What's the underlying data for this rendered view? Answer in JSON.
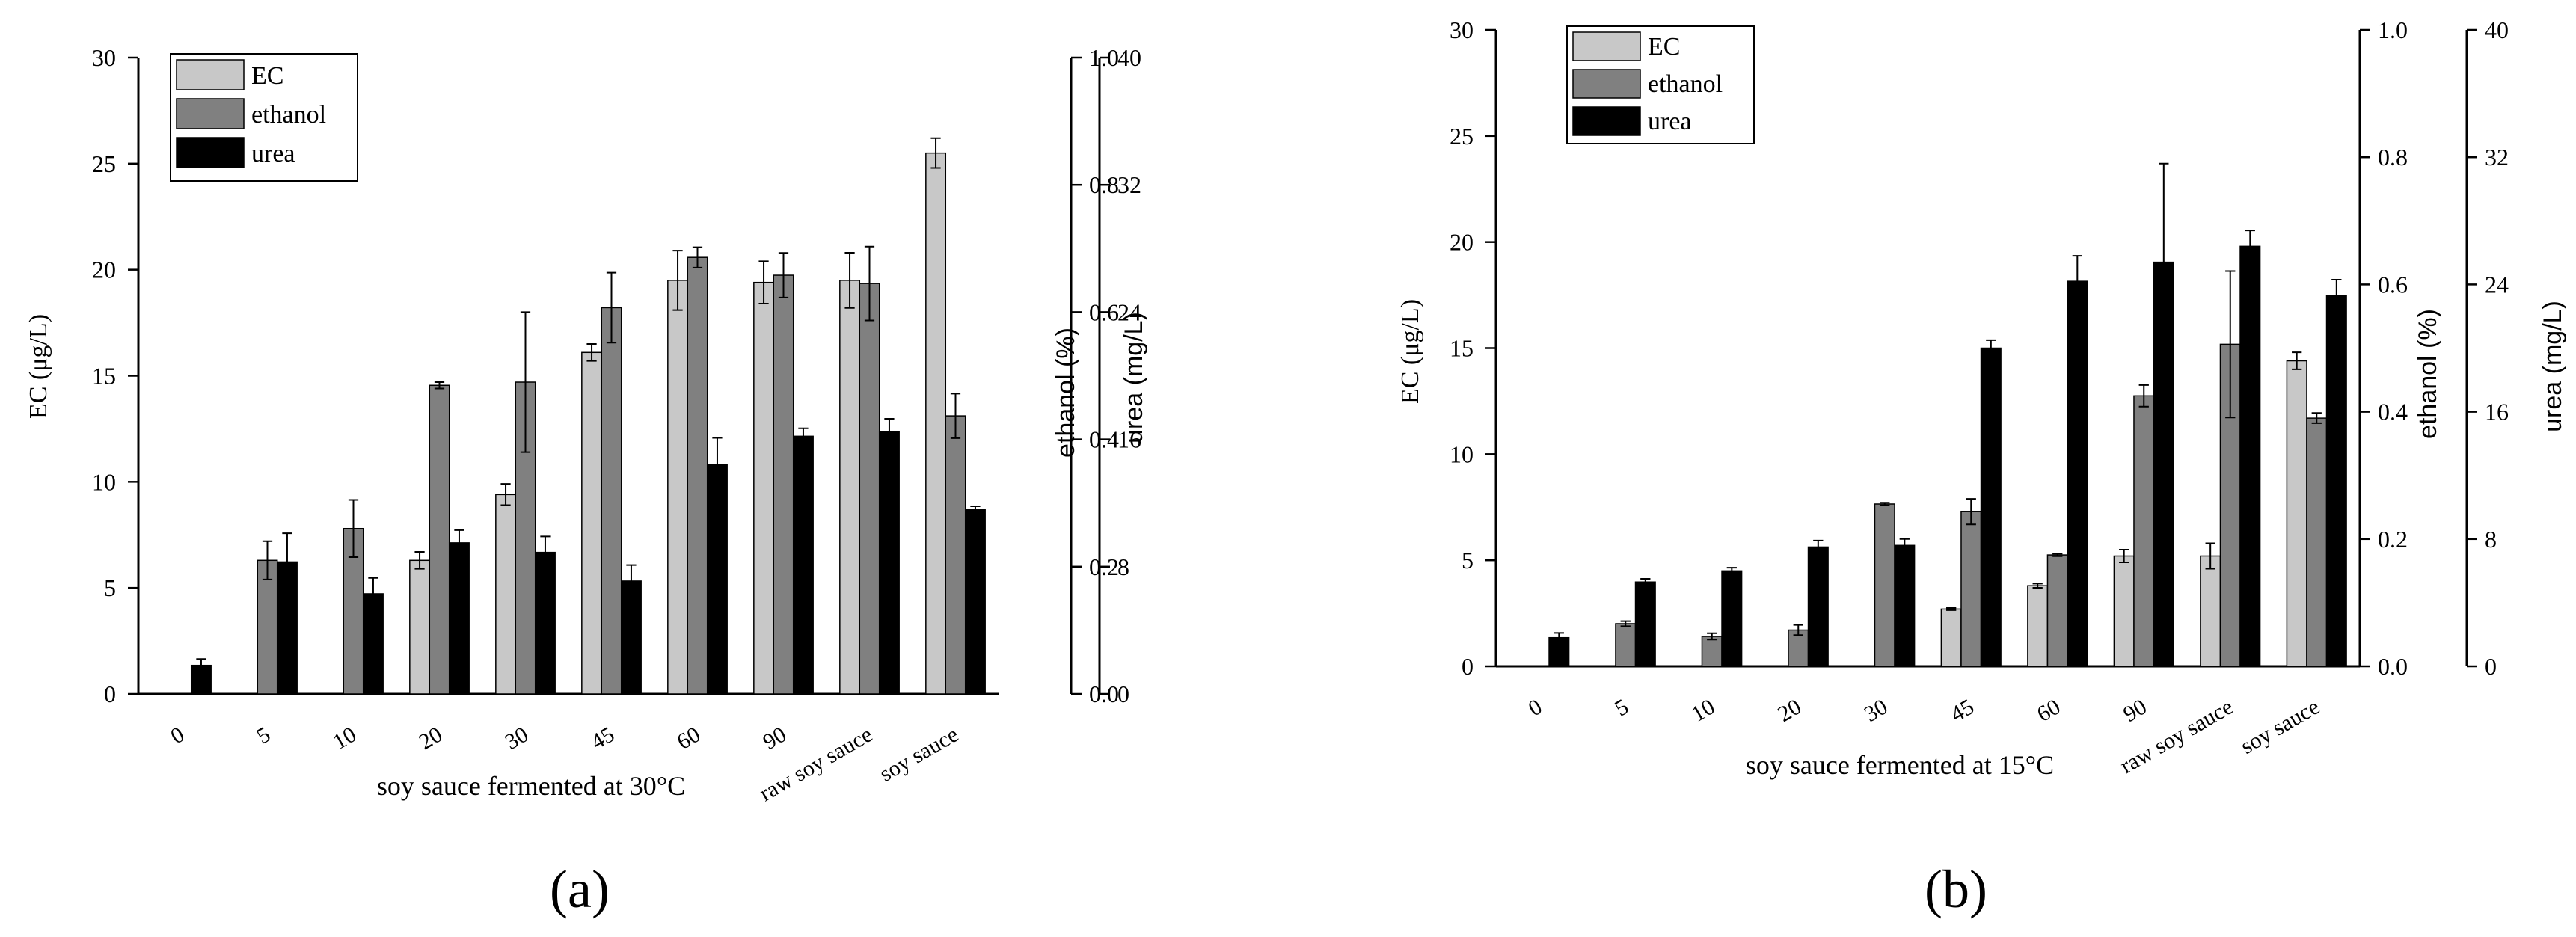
{
  "chart_data": [
    {
      "type": "bar",
      "panel_label": "(a)",
      "title": "",
      "xlabel": "soy sauce fermented at 30°C",
      "ylabel": "EC (μg/L)",
      "ylabel_right_1": "ethanol (%)",
      "ylabel_right_2": "urea (mg/L)",
      "categories": [
        "0",
        "5",
        "10",
        "20",
        "30",
        "45",
        "60",
        "90",
        "raw soy sauce",
        "soy sauce"
      ],
      "ylim": [
        0,
        30
      ],
      "ylim_right_1": [
        0,
        1.0
      ],
      "ylim_right_2": [
        0,
        40
      ],
      "yticks": [
        "0",
        "5",
        "10",
        "15",
        "20",
        "25",
        "30"
      ],
      "yticks_right_1": [
        "0.0",
        "0.2",
        "0.4",
        "0.6",
        "0.8",
        "1.0"
      ],
      "yticks_right_2": [
        "0",
        "8",
        "16",
        "24",
        "32",
        "40"
      ],
      "legend": [
        "EC",
        "ethanol",
        "urea"
      ],
      "legend_position": "top-left",
      "series": [
        {
          "name": "EC",
          "axis": "left",
          "color": "#c8c8c8",
          "values": [
            0,
            0,
            0,
            6.3,
            9.4,
            16.1,
            19.5,
            19.4,
            19.5,
            25.5
          ],
          "errors": [
            0,
            0,
            0,
            0.4,
            0.5,
            0.4,
            1.4,
            1.0,
            1.3,
            0.7
          ]
        },
        {
          "name": "ethanol",
          "axis": "right_1",
          "color": "#808080",
          "values": [
            0,
            0.21,
            0.26,
            0.485,
            0.49,
            0.607,
            0.686,
            0.658,
            0.645,
            0.437
          ],
          "errors": [
            0,
            0.03,
            0.045,
            0.005,
            0.11,
            0.055,
            0.016,
            0.035,
            0.058,
            0.035
          ]
        },
        {
          "name": "urea",
          "axis": "right_2",
          "color": "#000000",
          "values": [
            1.8,
            8.3,
            6.3,
            9.5,
            8.9,
            7.1,
            14.4,
            16.2,
            16.5,
            11.6
          ],
          "errors": [
            0.4,
            1.8,
            1.0,
            0.8,
            1.0,
            1.0,
            1.7,
            0.5,
            0.8,
            0.2
          ]
        }
      ]
    },
    {
      "type": "bar",
      "panel_label": "(b)",
      "title": "",
      "xlabel": "soy sauce fermented at 15°C",
      "ylabel": "EC (μg/L)",
      "ylabel_right_1": "ethanol (%)",
      "ylabel_right_2": "urea (mg/L)",
      "categories": [
        "0",
        "5",
        "10",
        "20",
        "30",
        "45",
        "60",
        "90",
        "raw soy sauce",
        "soy sauce"
      ],
      "ylim": [
        0,
        30
      ],
      "ylim_right_1": [
        0,
        1.0
      ],
      "ylim_right_2": [
        0,
        40
      ],
      "yticks": [
        "0",
        "5",
        "10",
        "15",
        "20",
        "25",
        "30"
      ],
      "yticks_right_1": [
        "0.0",
        "0.2",
        "0.4",
        "0.6",
        "0.8",
        "1.0"
      ],
      "yticks_right_2": [
        "0",
        "8",
        "16",
        "24",
        "32",
        "40"
      ],
      "legend": [
        "EC",
        "ethanol",
        "urea"
      ],
      "legend_position": "top-left",
      "series": [
        {
          "name": "EC",
          "axis": "left",
          "color": "#c8c8c8",
          "values": [
            0,
            0,
            0,
            0,
            0,
            2.7,
            3.8,
            5.2,
            5.2,
            14.4
          ],
          "errors": [
            0,
            0,
            0,
            0,
            0,
            0.05,
            0.1,
            0.3,
            0.6,
            0.4
          ]
        },
        {
          "name": "ethanol",
          "axis": "right_1",
          "color": "#808080",
          "values": [
            0,
            0.067,
            0.047,
            0.057,
            0.255,
            0.243,
            0.175,
            0.425,
            0.506,
            0.39
          ],
          "errors": [
            0,
            0.004,
            0.005,
            0.008,
            0.002,
            0.02,
            0.002,
            0.017,
            0.115,
            0.008
          ]
        },
        {
          "name": "urea",
          "axis": "right_2",
          "color": "#000000",
          "values": [
            1.8,
            5.3,
            6.0,
            7.5,
            7.6,
            20.0,
            24.2,
            25.4,
            26.4,
            23.3
          ],
          "errors": [
            0.3,
            0.2,
            0.2,
            0.4,
            0.4,
            0.5,
            1.6,
            6.2,
            1.0,
            1.0
          ]
        }
      ]
    }
  ]
}
